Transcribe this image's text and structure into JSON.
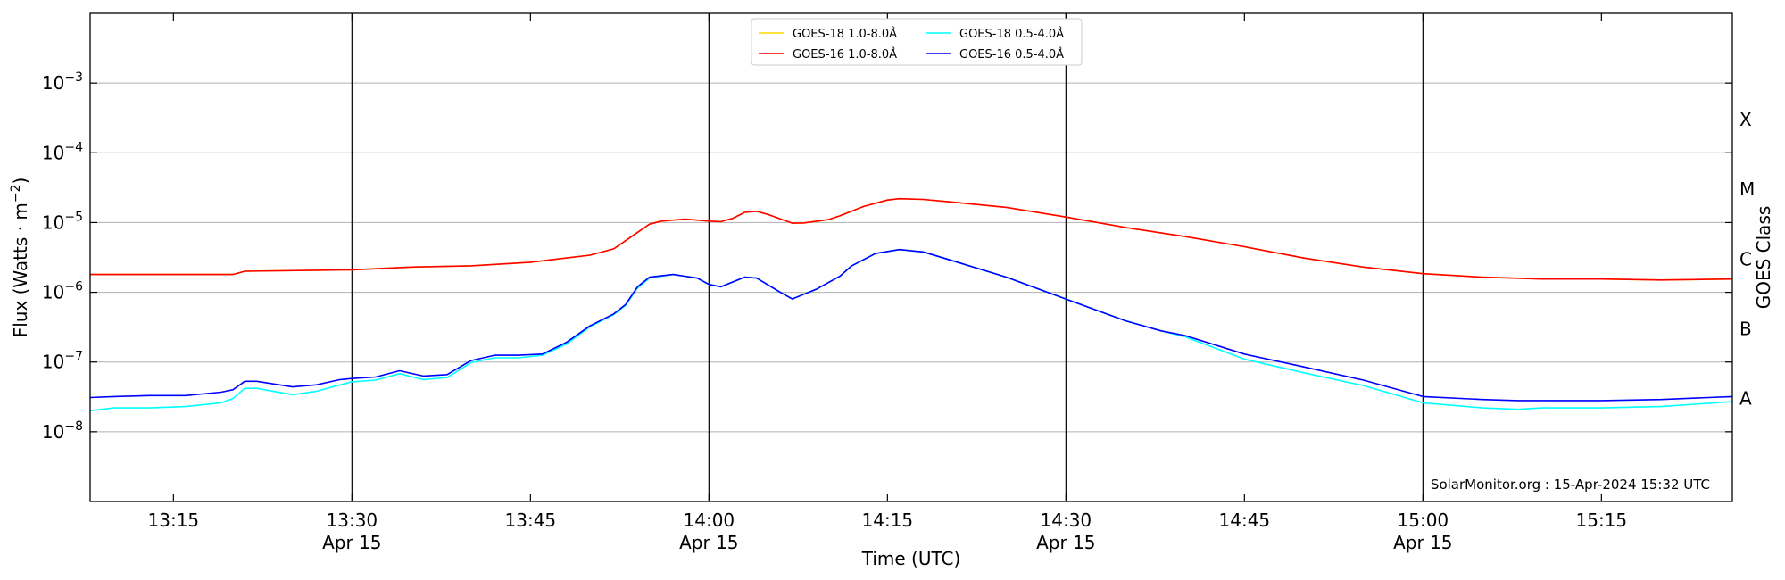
{
  "chart_data": {
    "type": "line",
    "xlabel": "Time (UTC)",
    "ylabel_main": "Flux (Watts · m",
    "ylabel_sup": "−2",
    "ylabel_close": ")",
    "right_label": "GOES Class",
    "annotation": "SolarMonitor.org : 15-Apr-2024 15:32 UTC",
    "x_range_minutes": [
      "13:08",
      "15:26"
    ],
    "y_scale": "log",
    "ylim": [
      1e-09,
      0.01
    ],
    "grid": "horizontal",
    "legend_placement": "top-center",
    "y_ticks": [
      {
        "value": 1e-08,
        "mant": "10",
        "exp": "−8"
      },
      {
        "value": 1e-07,
        "mant": "10",
        "exp": "−7"
      },
      {
        "value": 1e-06,
        "mant": "10",
        "exp": "−6"
      },
      {
        "value": 1e-05,
        "mant": "10",
        "exp": "−5"
      },
      {
        "value": 0.0001,
        "mant": "10",
        "exp": "−4"
      },
      {
        "value": 0.001,
        "mant": "10",
        "exp": "−3"
      }
    ],
    "x_ticks": [
      {
        "time": "13:15",
        "line1": "13:15",
        "line2": ""
      },
      {
        "time": "13:30",
        "line1": "13:30",
        "line2": "Apr 15"
      },
      {
        "time": "13:45",
        "line1": "13:45",
        "line2": ""
      },
      {
        "time": "14:00",
        "line1": "14:00",
        "line2": "Apr 15"
      },
      {
        "time": "14:15",
        "line1": "14:15",
        "line2": ""
      },
      {
        "time": "14:30",
        "line1": "14:30",
        "line2": "Apr 15"
      },
      {
        "time": "14:45",
        "line1": "14:45",
        "line2": ""
      },
      {
        "time": "15:00",
        "line1": "15:00",
        "line2": "Apr 15"
      },
      {
        "time": "15:15",
        "line1": "15:15",
        "line2": ""
      }
    ],
    "vertical_lines": [
      "13:30",
      "14:00",
      "14:30",
      "15:00"
    ],
    "goes_classes": [
      {
        "label": "A",
        "value": 3e-08
      },
      {
        "label": "B",
        "value": 3e-07
      },
      {
        "label": "C",
        "value": 3e-06
      },
      {
        "label": "M",
        "value": 3e-05
      },
      {
        "label": "X",
        "value": 0.0003
      }
    ],
    "legend": [
      {
        "name": "GOES-18 1.0-8.0Å",
        "color": "#ffd700"
      },
      {
        "name": "GOES-18 0.5-4.0Å",
        "color": "#00ffff"
      },
      {
        "name": "GOES-16 1.0-8.0Å",
        "color": "#ff0000"
      },
      {
        "name": "GOES-16 0.5-4.0Å",
        "color": "#0000ff"
      }
    ],
    "series": [
      {
        "name": "GOES-18 1.0-8.0Å",
        "color": "#ffd700",
        "points": [
          [
            "13:08",
            1.8e-06
          ],
          [
            "13:20",
            1.8e-06
          ],
          [
            "13:21",
            2e-06
          ],
          [
            "13:30",
            2.1e-06
          ],
          [
            "13:35",
            2.3e-06
          ],
          [
            "13:40",
            2.4e-06
          ],
          [
            "13:45",
            2.7e-06
          ],
          [
            "13:50",
            3.4e-06
          ],
          [
            "13:52",
            4.2e-06
          ],
          [
            "13:53",
            5.5e-06
          ],
          [
            "13:55",
            9.5e-06
          ],
          [
            "13:56",
            1.05e-05
          ],
          [
            "13:58",
            1.12e-05
          ],
          [
            "14:00",
            1.05e-05
          ],
          [
            "14:01",
            1.03e-05
          ],
          [
            "14:02",
            1.15e-05
          ],
          [
            "14:03",
            1.4e-05
          ],
          [
            "14:04",
            1.45e-05
          ],
          [
            "14:05",
            1.3e-05
          ],
          [
            "14:07",
            9.8e-06
          ],
          [
            "14:08",
            9.9e-06
          ],
          [
            "14:10",
            1.1e-05
          ],
          [
            "14:11",
            1.25e-05
          ],
          [
            "14:13",
            1.7e-05
          ],
          [
            "14:15",
            2.1e-05
          ],
          [
            "14:16",
            2.2e-05
          ],
          [
            "14:18",
            2.15e-05
          ],
          [
            "14:20",
            2e-05
          ],
          [
            "14:25",
            1.65e-05
          ],
          [
            "14:30",
            1.2e-05
          ],
          [
            "14:35",
            8.5e-06
          ],
          [
            "14:40",
            6.3e-06
          ],
          [
            "14:45",
            4.5e-06
          ],
          [
            "14:50",
            3.1e-06
          ],
          [
            "14:55",
            2.3e-06
          ],
          [
            "15:00",
            1.85e-06
          ],
          [
            "15:05",
            1.65e-06
          ],
          [
            "15:10",
            1.55e-06
          ],
          [
            "15:15",
            1.55e-06
          ],
          [
            "15:20",
            1.5e-06
          ],
          [
            "15:26",
            1.55e-06
          ]
        ]
      },
      {
        "name": "GOES-16 1.0-8.0Å",
        "color": "#ff0000",
        "points": [
          [
            "13:08",
            1.8e-06
          ],
          [
            "13:20",
            1.8e-06
          ],
          [
            "13:21",
            2e-06
          ],
          [
            "13:30",
            2.1e-06
          ],
          [
            "13:35",
            2.3e-06
          ],
          [
            "13:40",
            2.4e-06
          ],
          [
            "13:45",
            2.7e-06
          ],
          [
            "13:50",
            3.4e-06
          ],
          [
            "13:52",
            4.2e-06
          ],
          [
            "13:53",
            5.5e-06
          ],
          [
            "13:55",
            9.5e-06
          ],
          [
            "13:56",
            1.05e-05
          ],
          [
            "13:58",
            1.12e-05
          ],
          [
            "14:00",
            1.05e-05
          ],
          [
            "14:01",
            1.03e-05
          ],
          [
            "14:02",
            1.15e-05
          ],
          [
            "14:03",
            1.4e-05
          ],
          [
            "14:04",
            1.45e-05
          ],
          [
            "14:05",
            1.3e-05
          ],
          [
            "14:07",
            9.8e-06
          ],
          [
            "14:08",
            9.9e-06
          ],
          [
            "14:10",
            1.1e-05
          ],
          [
            "14:11",
            1.25e-05
          ],
          [
            "14:13",
            1.7e-05
          ],
          [
            "14:15",
            2.1e-05
          ],
          [
            "14:16",
            2.2e-05
          ],
          [
            "14:18",
            2.15e-05
          ],
          [
            "14:20",
            2e-05
          ],
          [
            "14:25",
            1.65e-05
          ],
          [
            "14:30",
            1.2e-05
          ],
          [
            "14:35",
            8.5e-06
          ],
          [
            "14:40",
            6.3e-06
          ],
          [
            "14:45",
            4.5e-06
          ],
          [
            "14:50",
            3.1e-06
          ],
          [
            "14:55",
            2.3e-06
          ],
          [
            "15:00",
            1.85e-06
          ],
          [
            "15:05",
            1.65e-06
          ],
          [
            "15:10",
            1.55e-06
          ],
          [
            "15:15",
            1.55e-06
          ],
          [
            "15:20",
            1.5e-06
          ],
          [
            "15:26",
            1.55e-06
          ]
        ]
      },
      {
        "name": "GOES-18 0.5-4.0Å",
        "color": "#00ffff",
        "points": [
          [
            "13:08",
            2e-08
          ],
          [
            "13:10",
            2.2e-08
          ],
          [
            "13:13",
            2.2e-08
          ],
          [
            "13:16",
            2.3e-08
          ],
          [
            "13:19",
            2.6e-08
          ],
          [
            "13:20",
            3e-08
          ],
          [
            "13:21",
            4.2e-08
          ],
          [
            "13:22",
            4.2e-08
          ],
          [
            "13:25",
            3.4e-08
          ],
          [
            "13:27",
            3.8e-08
          ],
          [
            "13:29",
            4.7e-08
          ],
          [
            "13:30",
            5.2e-08
          ],
          [
            "13:32",
            5.5e-08
          ],
          [
            "13:34",
            6.8e-08
          ],
          [
            "13:36",
            5.6e-08
          ],
          [
            "13:38",
            6e-08
          ],
          [
            "13:40",
            9.8e-08
          ],
          [
            "13:42",
            1.15e-07
          ],
          [
            "13:44",
            1.15e-07
          ],
          [
            "13:46",
            1.25e-07
          ],
          [
            "13:48",
            1.8e-07
          ],
          [
            "13:50",
            3.2e-07
          ],
          [
            "13:52",
            4.8e-07
          ],
          [
            "13:53",
            6.5e-07
          ],
          [
            "13:54",
            1.15e-06
          ],
          [
            "13:55",
            1.6e-06
          ],
          [
            "13:57",
            1.8e-06
          ],
          [
            "13:59",
            1.6e-06
          ],
          [
            "14:00",
            1.3e-06
          ],
          [
            "14:01",
            1.2e-06
          ],
          [
            "14:03",
            1.65e-06
          ],
          [
            "14:04",
            1.6e-06
          ],
          [
            "14:06",
            1e-06
          ],
          [
            "14:07",
            8e-07
          ],
          [
            "14:09",
            1.1e-06
          ],
          [
            "14:11",
            1.7e-06
          ],
          [
            "14:12",
            2.4e-06
          ],
          [
            "14:14",
            3.6e-06
          ],
          [
            "14:16",
            4.1e-06
          ],
          [
            "14:18",
            3.8e-06
          ],
          [
            "14:20",
            3e-06
          ],
          [
            "14:25",
            1.65e-06
          ],
          [
            "14:30",
            8e-07
          ],
          [
            "14:35",
            3.9e-07
          ],
          [
            "14:38",
            2.8e-07
          ],
          [
            "14:40",
            2.3e-07
          ],
          [
            "14:45",
            1.1e-07
          ],
          [
            "14:50",
            7e-08
          ],
          [
            "14:55",
            4.6e-08
          ],
          [
            "15:00",
            2.6e-08
          ],
          [
            "15:05",
            2.2e-08
          ],
          [
            "15:08",
            2.1e-08
          ],
          [
            "15:10",
            2.2e-08
          ],
          [
            "15:15",
            2.2e-08
          ],
          [
            "15:20",
            2.3e-08
          ],
          [
            "15:26",
            2.7e-08
          ]
        ]
      },
      {
        "name": "GOES-16 0.5-4.0Å",
        "color": "#0000ff",
        "points": [
          [
            "13:08",
            3.1e-08
          ],
          [
            "13:10",
            3.2e-08
          ],
          [
            "13:13",
            3.3e-08
          ],
          [
            "13:16",
            3.3e-08
          ],
          [
            "13:19",
            3.7e-08
          ],
          [
            "13:20",
            4e-08
          ],
          [
            "13:21",
            5.3e-08
          ],
          [
            "13:22",
            5.3e-08
          ],
          [
            "13:25",
            4.4e-08
          ],
          [
            "13:27",
            4.7e-08
          ],
          [
            "13:29",
            5.6e-08
          ],
          [
            "13:30",
            5.8e-08
          ],
          [
            "13:32",
            6.1e-08
          ],
          [
            "13:34",
            7.5e-08
          ],
          [
            "13:36",
            6.3e-08
          ],
          [
            "13:38",
            6.6e-08
          ],
          [
            "13:40",
            1.05e-07
          ],
          [
            "13:42",
            1.25e-07
          ],
          [
            "13:44",
            1.25e-07
          ],
          [
            "13:46",
            1.3e-07
          ],
          [
            "13:48",
            1.9e-07
          ],
          [
            "13:50",
            3.3e-07
          ],
          [
            "13:52",
            4.9e-07
          ],
          [
            "13:53",
            6.7e-07
          ],
          [
            "13:54",
            1.2e-06
          ],
          [
            "13:55",
            1.65e-06
          ],
          [
            "13:57",
            1.8e-06
          ],
          [
            "13:59",
            1.6e-06
          ],
          [
            "14:00",
            1.3e-06
          ],
          [
            "14:01",
            1.2e-06
          ],
          [
            "14:03",
            1.65e-06
          ],
          [
            "14:04",
            1.6e-06
          ],
          [
            "14:06",
            1e-06
          ],
          [
            "14:07",
            8e-07
          ],
          [
            "14:09",
            1.1e-06
          ],
          [
            "14:11",
            1.7e-06
          ],
          [
            "14:12",
            2.4e-06
          ],
          [
            "14:14",
            3.6e-06
          ],
          [
            "14:16",
            4.1e-06
          ],
          [
            "14:18",
            3.8e-06
          ],
          [
            "14:20",
            3e-06
          ],
          [
            "14:25",
            1.65e-06
          ],
          [
            "14:30",
            8e-07
          ],
          [
            "14:35",
            3.9e-07
          ],
          [
            "14:38",
            2.8e-07
          ],
          [
            "14:40",
            2.4e-07
          ],
          [
            "14:45",
            1.3e-07
          ],
          [
            "14:50",
            8.5e-08
          ],
          [
            "14:55",
            5.5e-08
          ],
          [
            "15:00",
            3.2e-08
          ],
          [
            "15:05",
            2.9e-08
          ],
          [
            "15:08",
            2.8e-08
          ],
          [
            "15:10",
            2.8e-08
          ],
          [
            "15:15",
            2.8e-08
          ],
          [
            "15:20",
            2.9e-08
          ],
          [
            "15:26",
            3.2e-08
          ]
        ]
      }
    ]
  }
}
